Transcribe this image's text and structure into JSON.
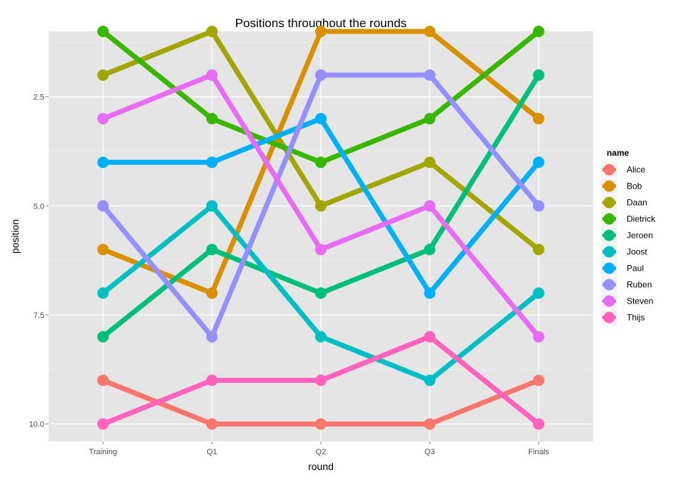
{
  "chart_data": {
    "type": "line",
    "title": "Positions throughout the rounds",
    "xlabel": "round",
    "ylabel": "position",
    "categories": [
      "Training",
      "Q1",
      "Q2",
      "Q3",
      "Finals"
    ],
    "ylim": [
      1.0,
      10.4
    ],
    "y_reversed": true,
    "yticks": [
      2.5,
      5.0,
      7.5,
      10.0
    ],
    "ytick_labels": [
      "2.5",
      "5.0",
      "7.5",
      "10.0"
    ],
    "grid": true,
    "legend_title": "name",
    "legend_position": "right",
    "series": [
      {
        "name": "Alice",
        "color": "#F8766D",
        "values": [
          9,
          10,
          10,
          10,
          9
        ]
      },
      {
        "name": "Bob",
        "color": "#D89000",
        "values": [
          6,
          7,
          1,
          1,
          3
        ]
      },
      {
        "name": "Daan",
        "color": "#A3A500",
        "values": [
          2,
          1,
          5,
          4,
          6
        ]
      },
      {
        "name": "Dietrick",
        "color": "#39B600",
        "values": [
          1,
          3,
          4,
          3,
          1
        ]
      },
      {
        "name": "Jeroen",
        "color": "#00BF7D",
        "values": [
          8,
          6,
          7,
          6,
          2
        ]
      },
      {
        "name": "Joost",
        "color": "#00BFC4",
        "values": [
          7,
          5,
          8,
          9,
          7
        ]
      },
      {
        "name": "Paul",
        "color": "#00B0F6",
        "values": [
          4,
          4,
          3,
          7,
          4
        ]
      },
      {
        "name": "Ruben",
        "color": "#9590FF",
        "values": [
          5,
          8,
          2,
          2,
          5
        ]
      },
      {
        "name": "Steven",
        "color": "#E76BF3",
        "values": [
          3,
          2,
          6,
          5,
          8
        ]
      },
      {
        "name": "Thijs",
        "color": "#FF62BC",
        "values": [
          10,
          9,
          9,
          8,
          10
        ]
      }
    ]
  }
}
